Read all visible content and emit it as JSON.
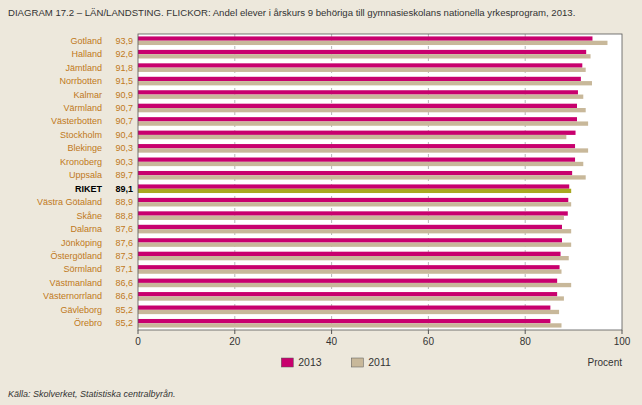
{
  "chart_data": {
    "type": "bar",
    "orientation": "horizontal",
    "title": "DIAGRAM 17.2 – LÄN/LANDSTING. FLICKOR: Andel elever i årskurs 9 behöriga till gymnasieskolans nationella yrkesprogram, 2013.",
    "source": "Källa: Skolverket, Statistiska centralbyrån.",
    "xlabel": "Procent",
    "categories": [
      "Gotland",
      "Halland",
      "Jämtland",
      "Norrbotten",
      "Kalmar",
      "Värmland",
      "Västerbotten",
      "Stockholm",
      "Blekinge",
      "Kronoberg",
      "Uppsala",
      "RIKET",
      "Västra Götaland",
      "Skåne",
      "Dalarna",
      "Jönköping",
      "Östergötland",
      "Sörmland",
      "Västmanland",
      "Västernorrland",
      "Gävleborg",
      "Örebro"
    ],
    "series": [
      {
        "name": "2013",
        "color": "#c8006e",
        "values": [
          93.9,
          92.6,
          91.8,
          91.5,
          90.9,
          90.7,
          90.7,
          90.4,
          90.3,
          90.3,
          89.7,
          89.1,
          88.9,
          88.8,
          87.6,
          87.6,
          87.3,
          87.1,
          86.6,
          86.6,
          85.2,
          85.2
        ],
        "value_labels": [
          "93,9",
          "92,6",
          "91,8",
          "91,5",
          "90,9",
          "90,7",
          "90,7",
          "90,4",
          "90,3",
          "90,3",
          "89,7",
          "89,1",
          "88,9",
          "88,8",
          "87,6",
          "87,6",
          "87,3",
          "87,1",
          "86,6",
          "86,6",
          "85,2",
          "85,2"
        ]
      },
      {
        "name": "2011",
        "color": "#c8b89a",
        "colors": [
          "#c8b89a",
          "#c8b89a",
          "#c8b89a",
          "#c8b89a",
          "#c8b89a",
          "#c8b89a",
          "#c8b89a",
          "#c8b89a",
          "#c8b89a",
          "#c8b89a",
          "#c8b89a",
          "#a8a820",
          "#c8b89a",
          "#c8b89a",
          "#c8b89a",
          "#c8b89a",
          "#c8b89a",
          "#c8b89a",
          "#c8b89a",
          "#c8b89a",
          "#c8b89a",
          "#c8b89a"
        ],
        "values": [
          97.0,
          93.5,
          92.5,
          93.8,
          92.0,
          92.5,
          93.0,
          88.5,
          93.0,
          92.0,
          92.5,
          89.5,
          89.5,
          88.0,
          89.5,
          89.5,
          89.0,
          87.5,
          89.5,
          88.0,
          87.0,
          87.5
        ]
      }
    ],
    "data_labels": true,
    "xlim": [
      0,
      100
    ],
    "xticks": [
      0,
      20,
      40,
      60,
      80,
      100
    ],
    "grid": true,
    "legend": "bottom"
  }
}
